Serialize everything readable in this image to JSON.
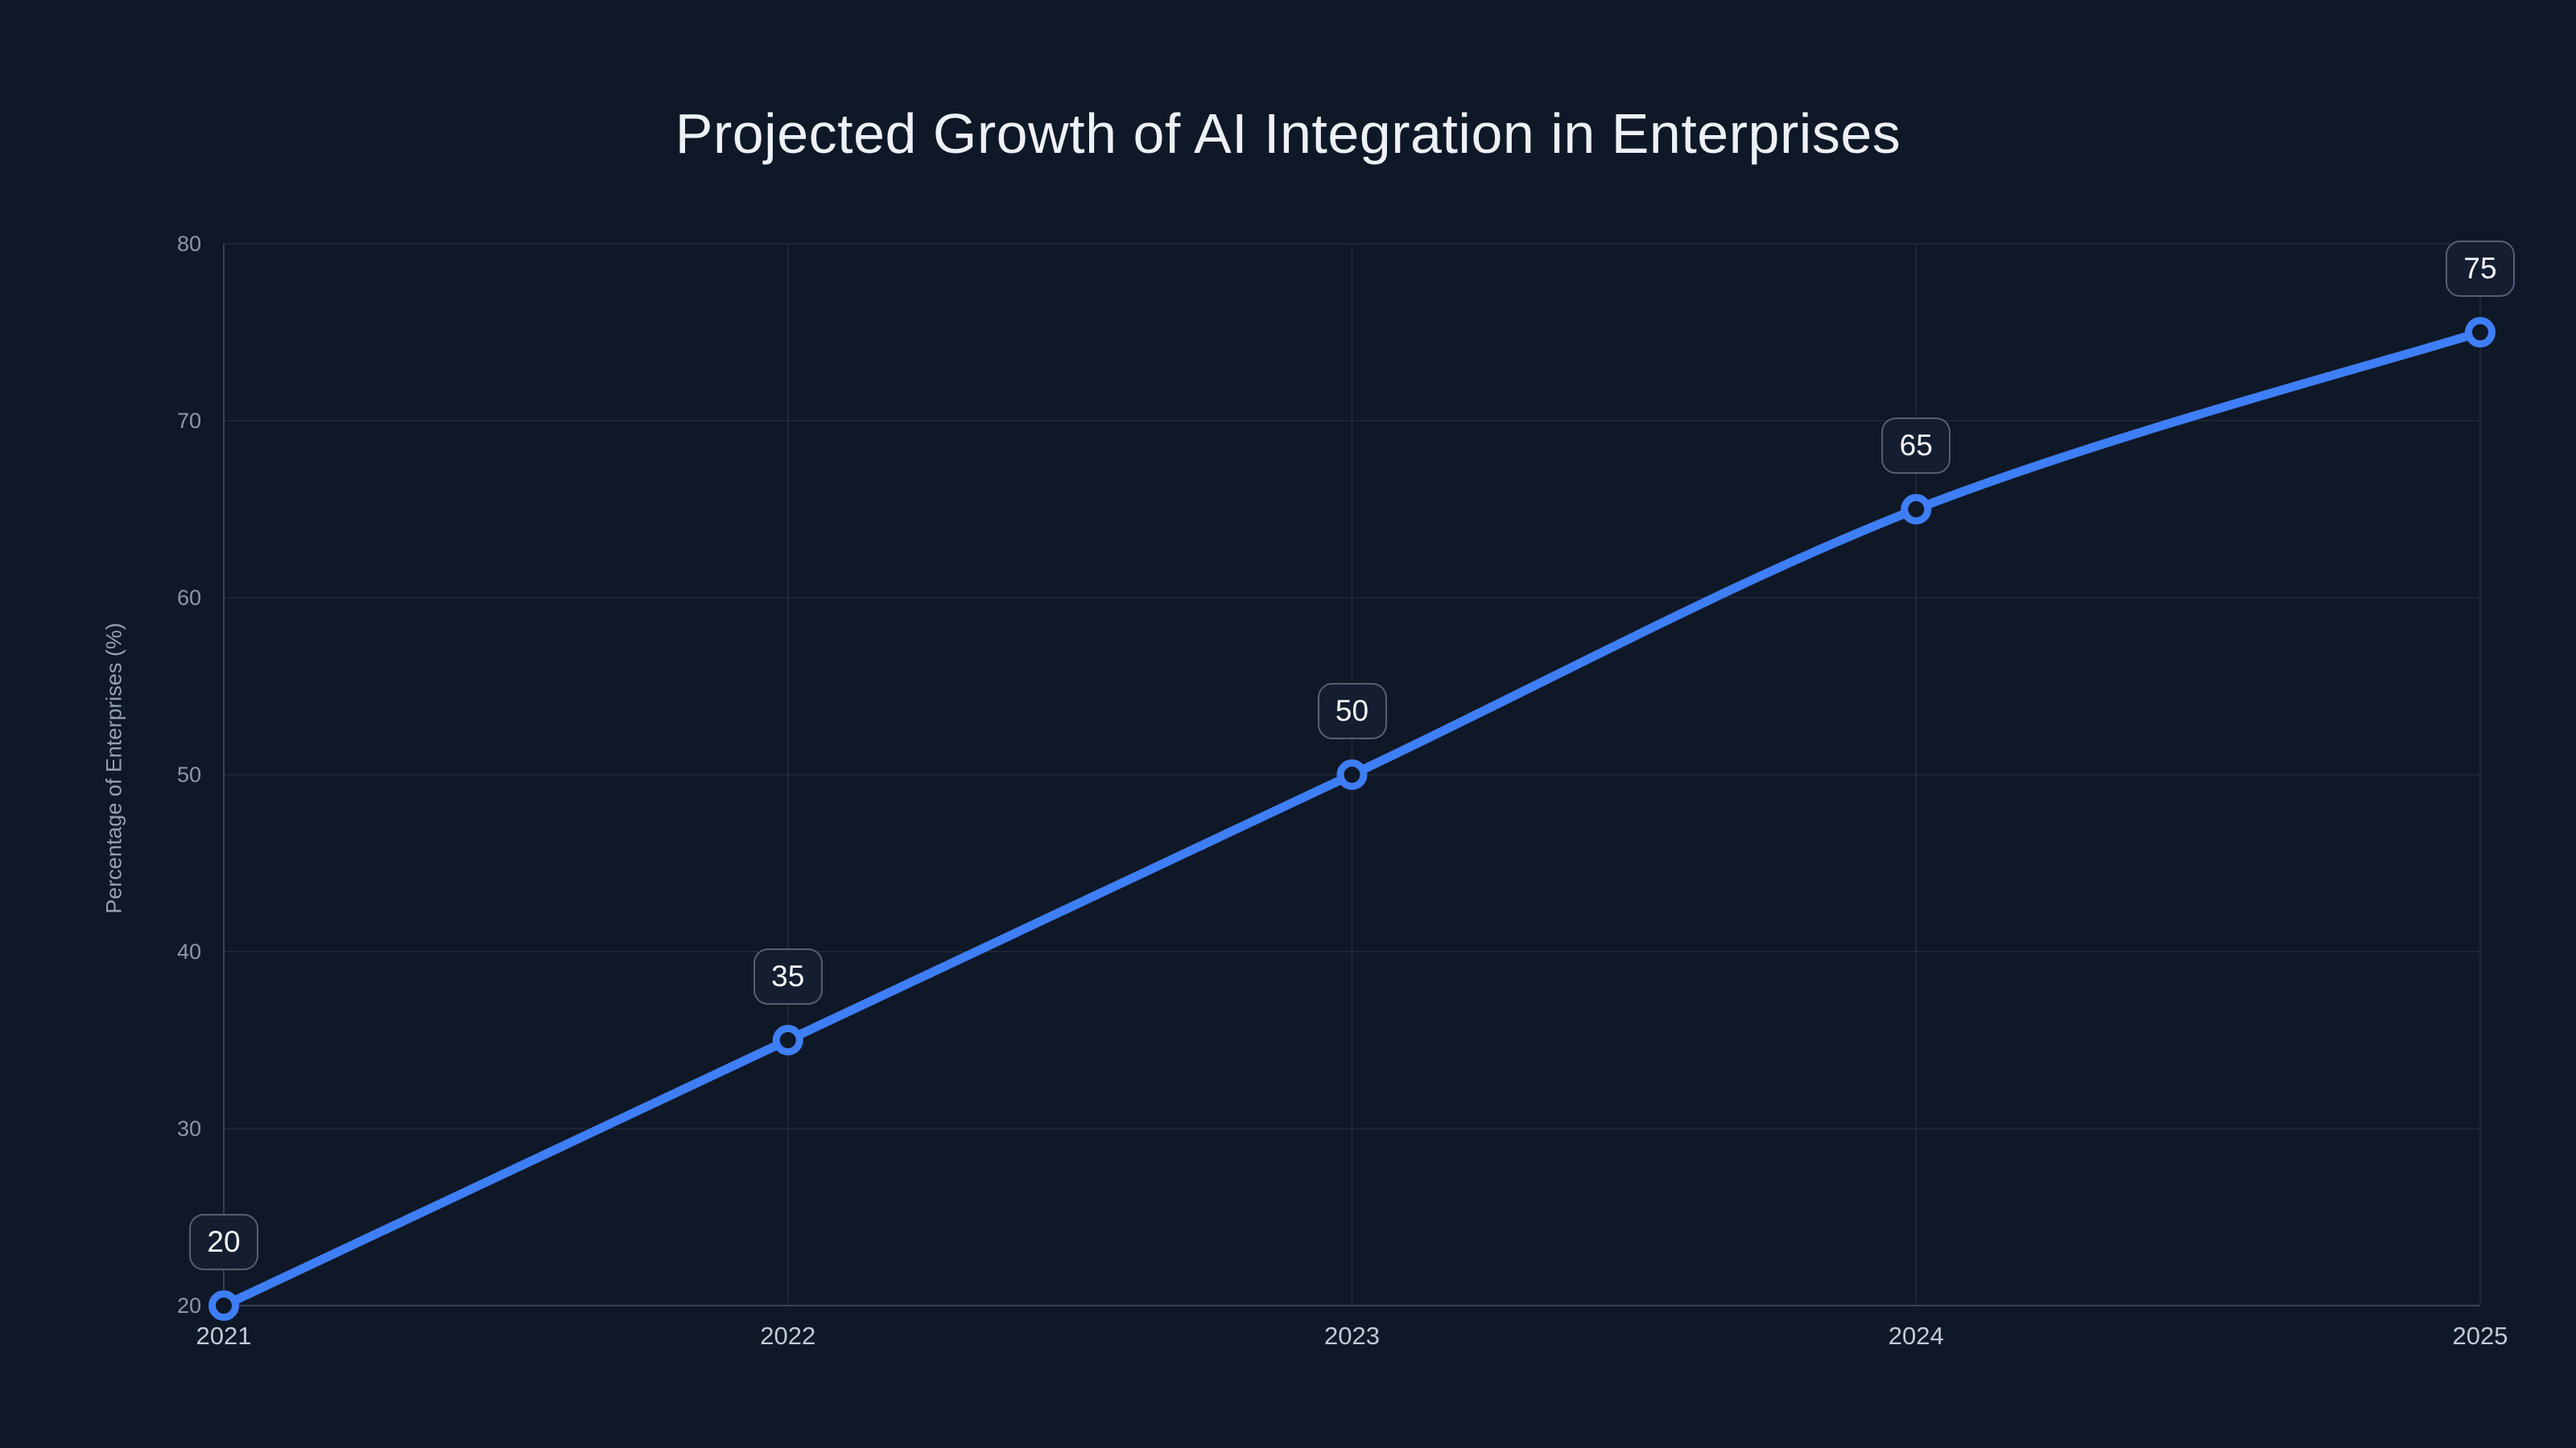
{
  "chart_data": {
    "type": "line",
    "title": "Projected Growth of AI Integration in Enterprises",
    "categories": [
      "2021",
      "2022",
      "2023",
      "2024",
      "2025"
    ],
    "values": [
      20,
      35,
      50,
      65,
      75
    ],
    "point_labels": [
      "20",
      "35",
      "50",
      "65",
      "75"
    ],
    "xlabel": "",
    "ylabel": "Percentage of Enterprises (%)",
    "ylim": [
      20,
      80
    ],
    "yticks": [
      20,
      30,
      40,
      50,
      60,
      70,
      80
    ],
    "grid": "both",
    "legend": "none",
    "line_style": "smooth"
  },
  "colors": {
    "background": "#0f1827",
    "line": "#3e7ef7",
    "marker_stroke": "#3e7ef7",
    "marker_fill": "#0f1827",
    "grid": "#94a3b822",
    "axis": "#94a3b84d",
    "title_text": "#edf1f7",
    "y_tick_text": "#8c97aa",
    "x_tick_text": "#c2c9d5",
    "axis_title_text": "#94a0b4",
    "label_box_bg": "#151d30",
    "label_box_border": "#94a3b880",
    "label_box_text": "#f7f9fc"
  }
}
